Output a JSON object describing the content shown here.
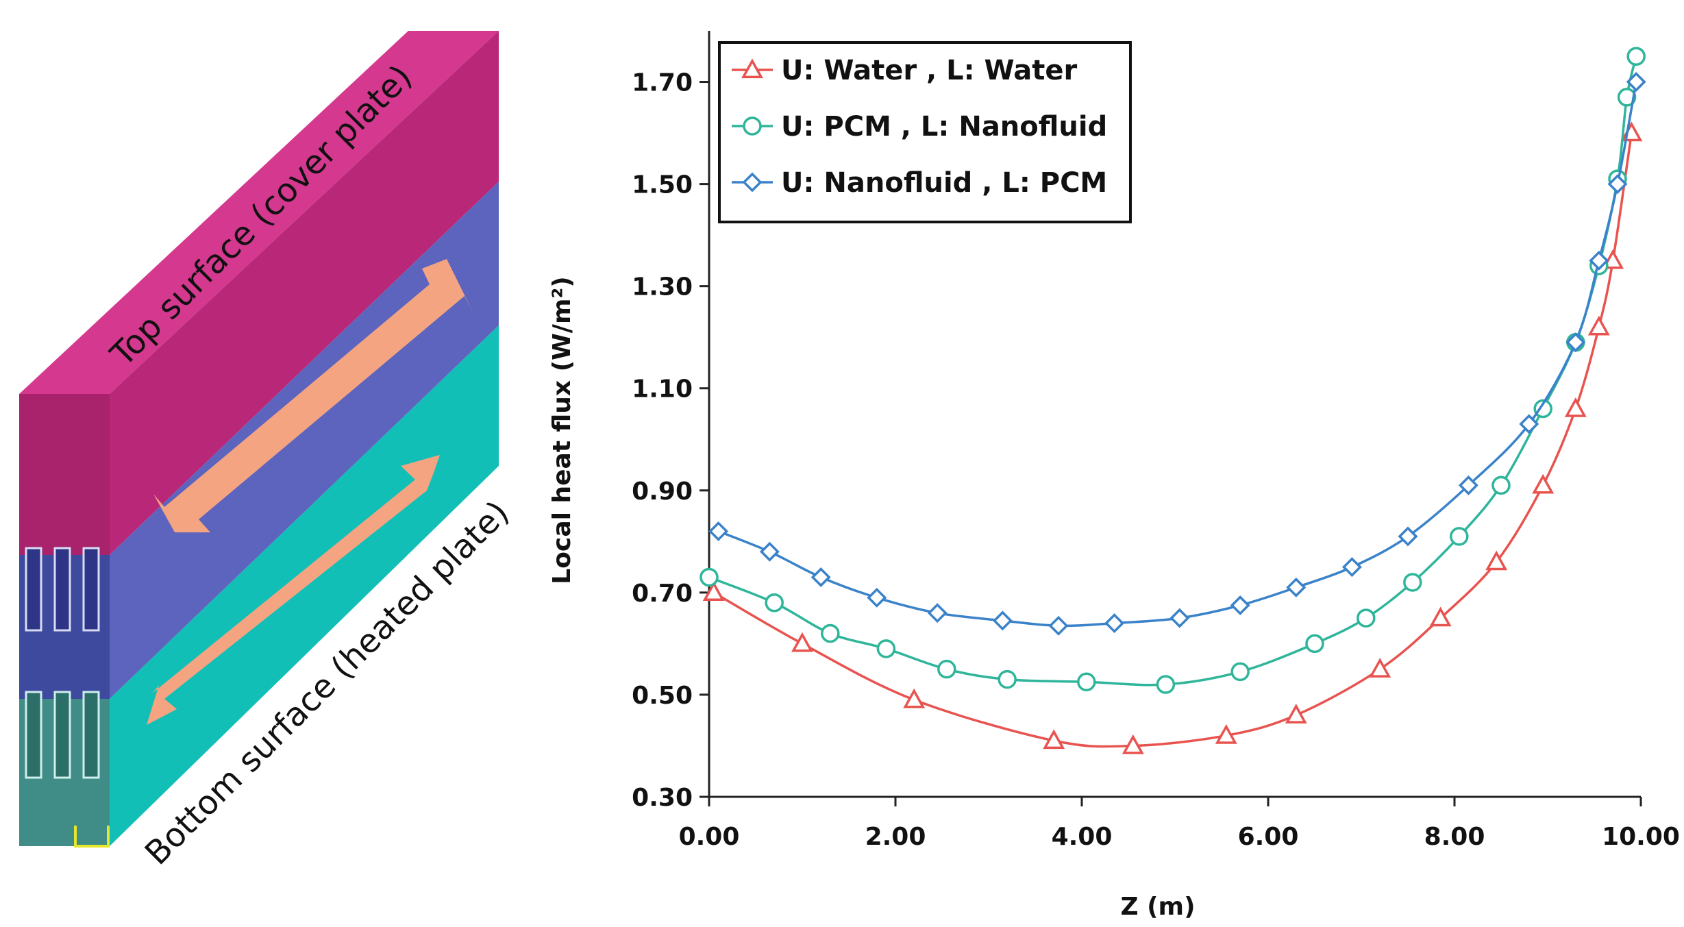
{
  "diagram": {
    "top_label": "Top surface (cover plate)",
    "bottom_label": "Bottom surface (heated plate)"
  },
  "chart_data": {
    "type": "line",
    "xlabel": "Z (m)",
    "ylabel": "Local heat flux (W/m²)",
    "xlim": [
      0,
      10
    ],
    "ylim": [
      0.3,
      1.8
    ],
    "x_ticks": [
      "0.00",
      "2.00",
      "4.00",
      "6.00",
      "8.00",
      "10.00"
    ],
    "y_ticks": [
      "0.30",
      "0.50",
      "0.70",
      "0.90",
      "1.10",
      "1.30",
      "1.50",
      "1.70"
    ],
    "legend_position": "top-left",
    "series": [
      {
        "name": "U: Water , L: Water",
        "color": "#e8534f",
        "marker": "triangle",
        "x": [
          0.05,
          1.0,
          2.2,
          3.7,
          4.55,
          5.55,
          6.3,
          7.2,
          7.85,
          8.45,
          8.95,
          9.3,
          9.55,
          9.7,
          9.9
        ],
        "y": [
          0.7,
          0.6,
          0.49,
          0.41,
          0.4,
          0.42,
          0.46,
          0.55,
          0.65,
          0.76,
          0.91,
          1.06,
          1.22,
          1.35,
          1.6
        ]
      },
      {
        "name": "U: PCM , L: Nanofluid",
        "color": "#2eb59a",
        "marker": "circle",
        "x": [
          0.0,
          0.7,
          1.3,
          1.9,
          2.55,
          3.2,
          4.05,
          4.9,
          5.7,
          6.5,
          7.05,
          7.55,
          8.05,
          8.5,
          8.95,
          9.3,
          9.55,
          9.75,
          9.85,
          9.95
        ],
        "y": [
          0.73,
          0.68,
          0.62,
          0.59,
          0.55,
          0.53,
          0.525,
          0.52,
          0.545,
          0.6,
          0.65,
          0.72,
          0.81,
          0.91,
          1.06,
          1.19,
          1.34,
          1.51,
          1.67,
          1.75
        ]
      },
      {
        "name": "U: Nanofluid , L: PCM",
        "color": "#3a82c9",
        "marker": "diamond",
        "x": [
          0.1,
          0.65,
          1.2,
          1.8,
          2.45,
          3.15,
          3.75,
          4.35,
          5.05,
          5.7,
          6.3,
          6.9,
          7.5,
          8.15,
          8.8,
          9.3,
          9.55,
          9.75,
          9.95
        ],
        "y": [
          0.82,
          0.78,
          0.73,
          0.69,
          0.66,
          0.645,
          0.635,
          0.64,
          0.65,
          0.675,
          0.71,
          0.75,
          0.81,
          0.91,
          1.03,
          1.19,
          1.35,
          1.5,
          1.7
        ]
      }
    ]
  }
}
